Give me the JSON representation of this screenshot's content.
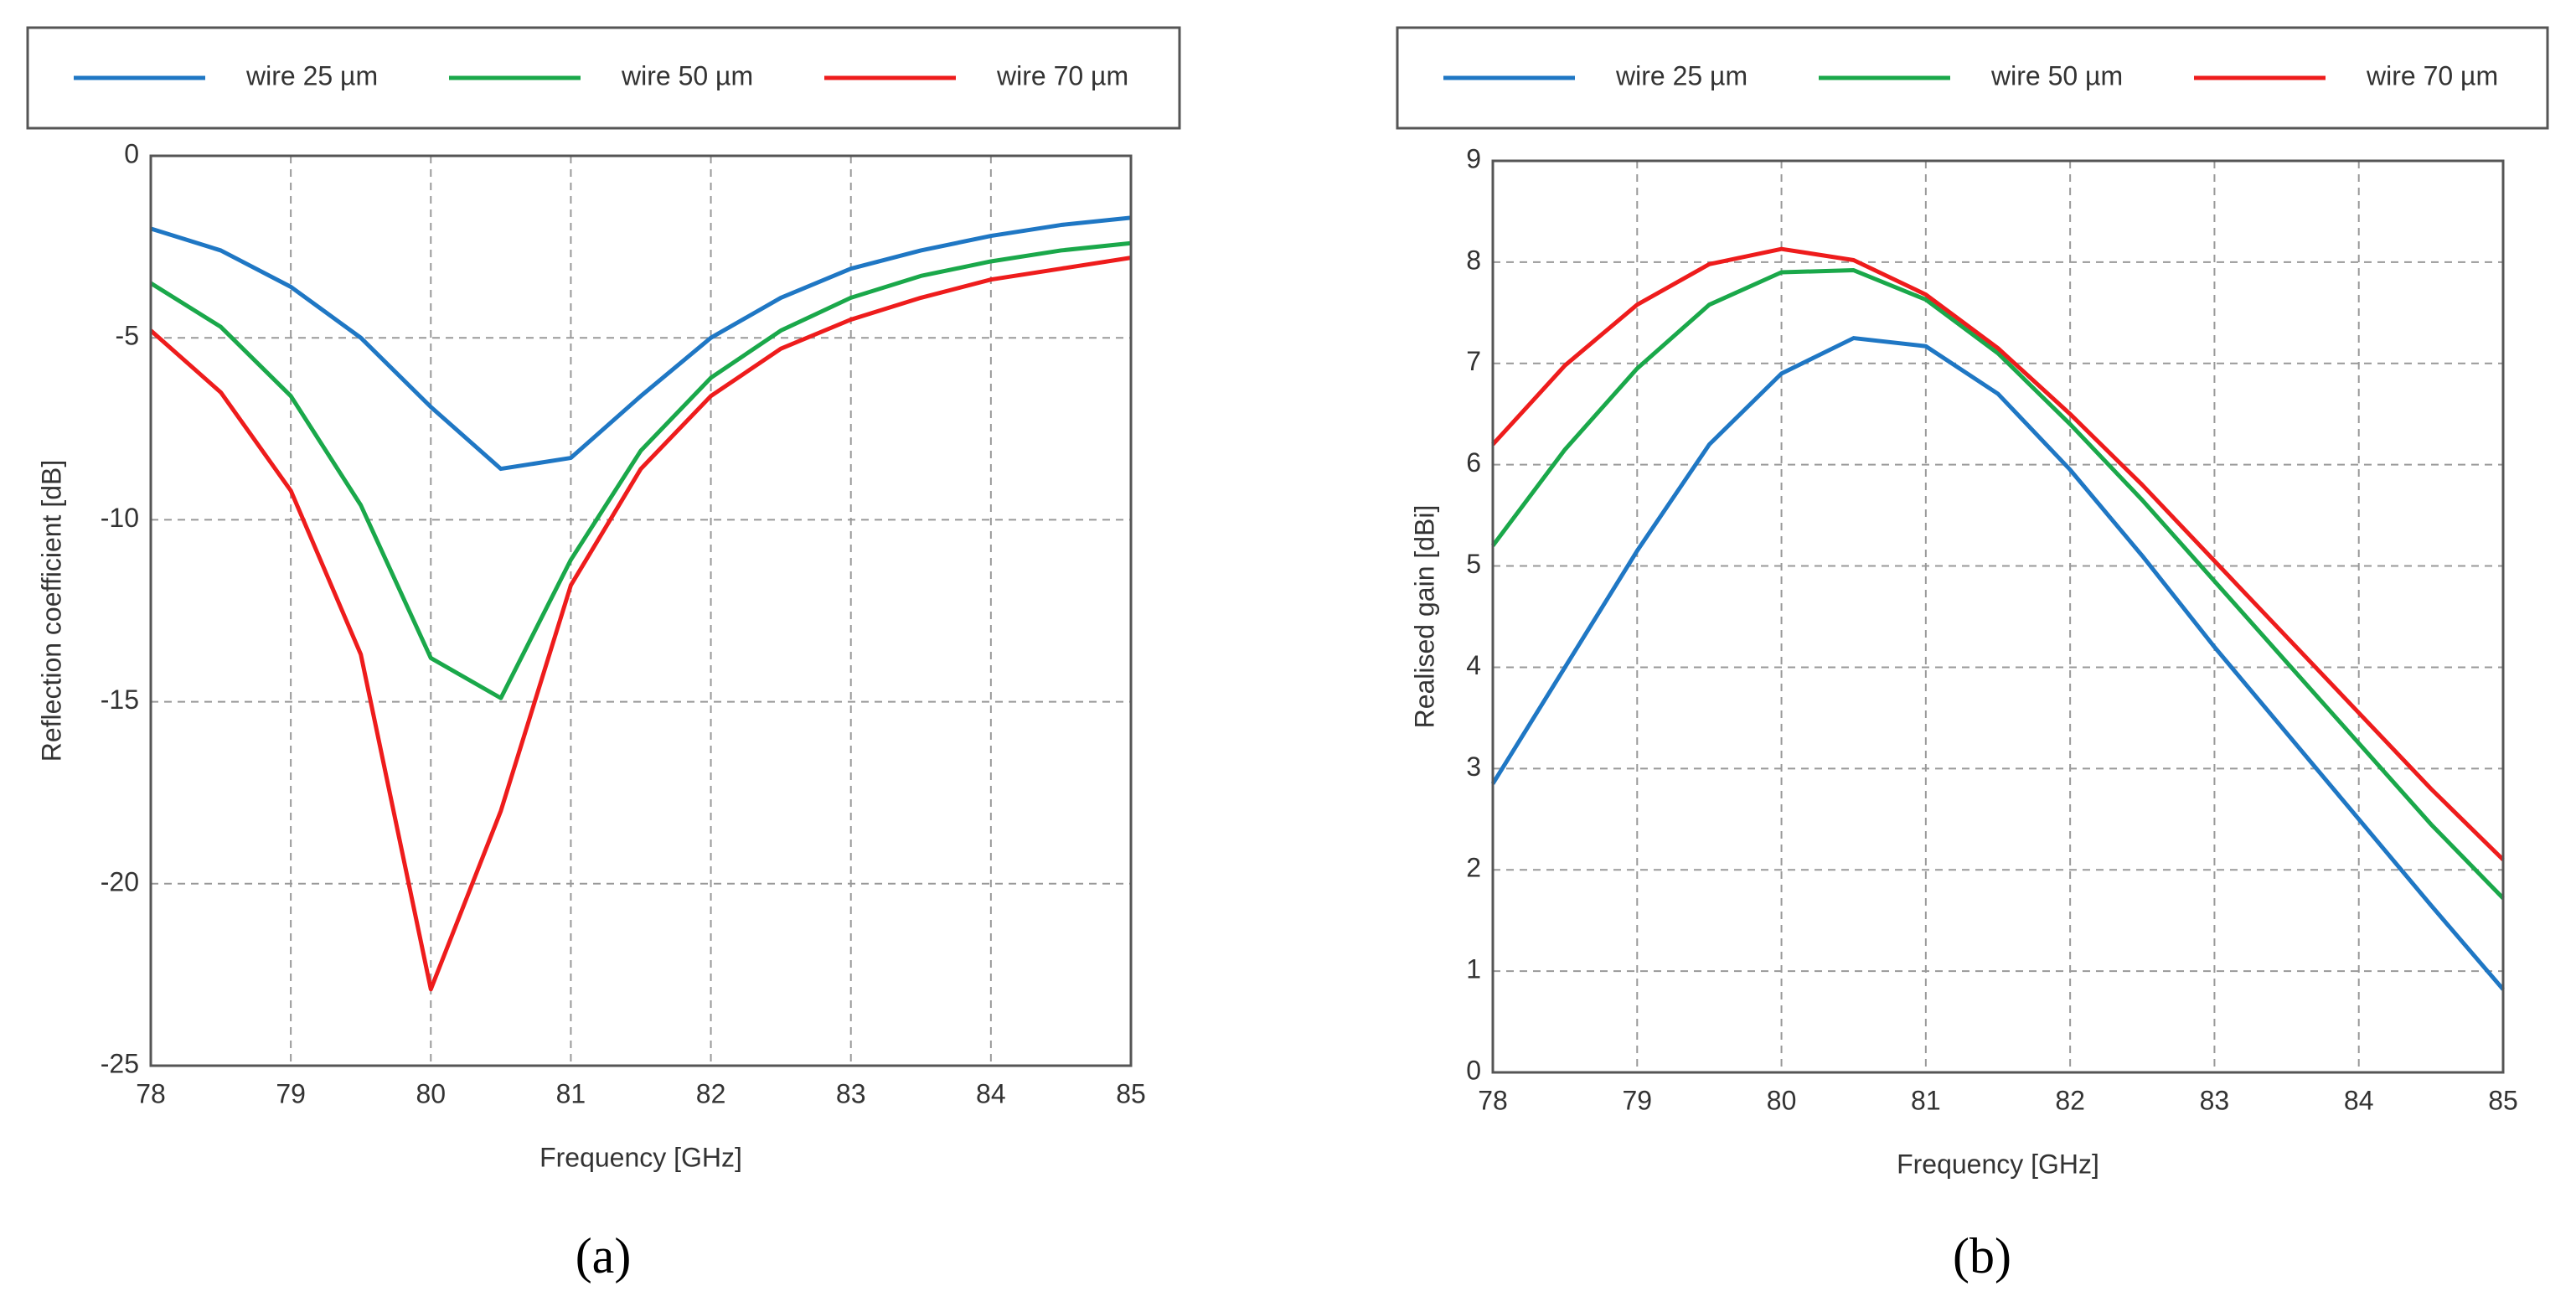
{
  "chart_data": [
    {
      "type": "line",
      "panel_label": "(a)",
      "xlabel": "Frequency [GHz]",
      "ylabel": "Reflection coefficient [dB]",
      "x": [
        78,
        78.5,
        79,
        79.5,
        80,
        80.5,
        81,
        81.5,
        82,
        82.5,
        83,
        83.5,
        84,
        84.5,
        85
      ],
      "series": [
        {
          "name": "wire 25 µm",
          "color": "#1f77c4",
          "values": [
            -2.0,
            -2.6,
            -3.6,
            -5.0,
            -6.9,
            -8.6,
            -8.3,
            -6.6,
            -5.0,
            -3.9,
            -3.1,
            -2.6,
            -2.2,
            -1.9,
            -1.7
          ]
        },
        {
          "name": "wire 50 µm",
          "color": "#1aa84a",
          "values": [
            -3.5,
            -4.7,
            -6.6,
            -9.6,
            -13.8,
            -14.9,
            -11.1,
            -8.1,
            -6.1,
            -4.8,
            -3.9,
            -3.3,
            -2.9,
            -2.6,
            -2.4
          ]
        },
        {
          "name": "wire 70 µm",
          "color": "#ee1c1c",
          "values": [
            -4.8,
            -6.5,
            -9.2,
            -13.7,
            -22.9,
            -18.0,
            -11.8,
            -8.6,
            -6.6,
            -5.3,
            -4.5,
            -3.9,
            -3.4,
            -3.1,
            -2.8
          ]
        }
      ],
      "xlim": [
        78,
        85
      ],
      "xticks": [
        78,
        79,
        80,
        81,
        82,
        83,
        84,
        85
      ],
      "ylim": [
        -25,
        0
      ],
      "yticks": [
        0,
        -5,
        -10,
        -15,
        -20,
        -25
      ],
      "grid": true,
      "legend": "top"
    },
    {
      "type": "line",
      "panel_label": "(b)",
      "xlabel": "Frequency [GHz]",
      "ylabel": "Realised gain [dBi]",
      "x": [
        78,
        78.5,
        79,
        79.5,
        80,
        80.5,
        81,
        81.5,
        82,
        82.5,
        83,
        83.5,
        84,
        84.5,
        85
      ],
      "series": [
        {
          "name": "wire 25 µm",
          "color": "#1f77c4",
          "values": [
            2.85,
            4.0,
            5.15,
            6.2,
            6.9,
            7.25,
            7.17,
            6.7,
            5.95,
            5.1,
            4.2,
            3.35,
            2.5,
            1.65,
            0.82
          ]
        },
        {
          "name": "wire 50 µm",
          "color": "#1aa84a",
          "values": [
            5.2,
            6.15,
            6.95,
            7.58,
            7.9,
            7.92,
            7.63,
            7.1,
            6.4,
            5.65,
            4.85,
            4.05,
            3.25,
            2.45,
            1.72
          ]
        },
        {
          "name": "wire 70 µm",
          "color": "#ee1c1c",
          "values": [
            6.2,
            6.98,
            7.58,
            7.98,
            8.13,
            8.02,
            7.68,
            7.15,
            6.5,
            5.8,
            5.05,
            4.3,
            3.55,
            2.8,
            2.1
          ]
        }
      ],
      "xlim": [
        78,
        85
      ],
      "xticks": [
        78,
        79,
        80,
        81,
        82,
        83,
        84,
        85
      ],
      "ylim": [
        0,
        9
      ],
      "yticks": [
        0,
        1,
        2,
        3,
        4,
        5,
        6,
        7,
        8,
        9
      ],
      "grid": true,
      "legend": "top"
    }
  ]
}
